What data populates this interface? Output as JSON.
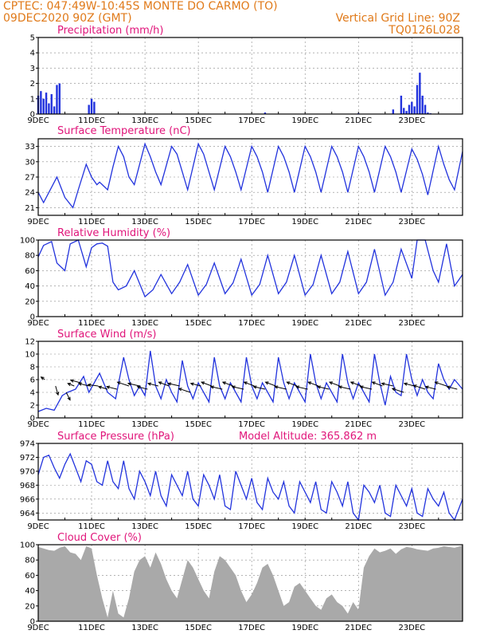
{
  "header": {
    "line1_left": "CPTEC:   047:49W-10:45S   MONTE DO CARMO (TO)",
    "line2_left": "09DEC2020 90Z (GMT)",
    "line2_right": "Vertical Grid Line: 90Z",
    "line3_right": "TQ0126L028"
  },
  "colors": {
    "header": "#e07a1a",
    "title": "#e0157a",
    "line": "#2233dd",
    "bar": "#2233dd",
    "cloud": "#a9a9a9",
    "arrow": "#000000"
  },
  "chart_data": [
    {
      "id": "precip",
      "type": "bar",
      "title": "Precipitation (mm/h)",
      "ylim": [
        0,
        5
      ],
      "yticks": [
        0,
        1,
        2,
        3,
        4,
        5
      ],
      "xticks": [
        "9DEC",
        "11DEC",
        "13DEC",
        "15DEC",
        "17DEC",
        "19DEC",
        "21DEC",
        "23DEC"
      ],
      "x": [
        0.0,
        0.1,
        0.2,
        0.3,
        0.4,
        0.5,
        0.6,
        0.7,
        0.8,
        1.9,
        2.0,
        2.1,
        8.5,
        12.0,
        13.3,
        13.6,
        13.7,
        13.8,
        13.9,
        14.0,
        14.1,
        14.2,
        14.3,
        14.4,
        14.5,
        14.6,
        14.7
      ],
      "values": [
        1.2,
        1.5,
        1.0,
        1.4,
        0.7,
        1.3,
        0.5,
        1.9,
        2.0,
        0.6,
        1.0,
        0.8,
        0.1,
        0.05,
        0.3,
        1.2,
        0.4,
        0.2,
        0.6,
        0.8,
        0.5,
        1.9,
        2.7,
        1.2,
        0.6,
        0.1,
        0.05
      ]
    },
    {
      "id": "temp",
      "type": "line",
      "title": "Surface Temperature (nC)",
      "ylim": [
        19.5,
        34.5
      ],
      "yticks": [
        21,
        24,
        27,
        30,
        33
      ],
      "xticks": [
        "9DEC",
        "11DEC",
        "13DEC",
        "15DEC",
        "17DEC",
        "19DEC",
        "21DEC",
        "23DEC"
      ],
      "x": [
        0.0,
        0.2,
        0.5,
        0.7,
        1.0,
        1.3,
        1.5,
        1.8,
        2.0,
        2.2,
        2.3,
        2.6,
        2.8,
        3.0,
        3.2,
        3.4,
        3.6,
        4.0,
        4.2,
        4.4,
        4.6,
        5.0,
        5.2,
        5.4,
        5.6,
        6.0,
        6.2,
        6.4,
        6.6,
        7.0,
        7.2,
        7.4,
        7.6,
        8.0,
        8.2,
        8.4,
        8.6,
        9.0,
        9.2,
        9.4,
        9.6,
        10.0,
        10.2,
        10.4,
        10.6,
        11.0,
        11.2,
        11.4,
        11.6,
        12.0,
        12.2,
        12.4,
        12.6,
        13.0,
        13.2,
        13.4,
        13.6,
        14.0,
        14.2,
        14.4,
        14.6,
        15.0,
        15.2,
        15.4,
        15.6,
        15.9
      ],
      "values": [
        24.0,
        22.0,
        25.0,
        27.0,
        23.0,
        21.0,
        24.5,
        29.5,
        27.0,
        25.5,
        26.0,
        24.5,
        29.0,
        33.0,
        31.0,
        27.0,
        25.5,
        33.5,
        31.0,
        28.0,
        25.5,
        33.0,
        31.5,
        28.0,
        24.5,
        33.5,
        31.5,
        28.0,
        24.5,
        33.0,
        31.0,
        28.0,
        24.5,
        33.0,
        31.0,
        28.0,
        24.0,
        33.0,
        31.0,
        28.0,
        24.0,
        33.0,
        31.0,
        28.0,
        24.0,
        33.0,
        31.0,
        28.0,
        24.0,
        33.0,
        31.0,
        28.0,
        24.0,
        33.0,
        31.0,
        28.0,
        24.0,
        32.5,
        30.5,
        27.5,
        23.5,
        33.0,
        29.5,
        26.5,
        24.5,
        32.0
      ]
    },
    {
      "id": "rh",
      "type": "line",
      "title": "Relative Humidity (%)",
      "ylim": [
        0,
        100
      ],
      "yticks": [
        0,
        20,
        40,
        60,
        80,
        100
      ],
      "xticks": [
        "9DEC",
        "11DEC",
        "13DEC",
        "15DEC",
        "17DEC",
        "19DEC",
        "21DEC",
        "23DEC"
      ],
      "x": [
        0.0,
        0.2,
        0.5,
        0.7,
        1.0,
        1.2,
        1.5,
        1.8,
        2.0,
        2.2,
        2.4,
        2.6,
        2.8,
        3.0,
        3.3,
        3.6,
        4.0,
        4.3,
        4.6,
        5.0,
        5.3,
        5.6,
        6.0,
        6.3,
        6.6,
        7.0,
        7.3,
        7.6,
        8.0,
        8.3,
        8.6,
        9.0,
        9.3,
        9.6,
        10.0,
        10.3,
        10.6,
        11.0,
        11.3,
        11.6,
        12.0,
        12.3,
        12.6,
        13.0,
        13.3,
        13.6,
        14.0,
        14.2,
        14.5,
        14.8,
        15.0,
        15.3,
        15.6,
        15.9
      ],
      "values": [
        78,
        93,
        98,
        70,
        60,
        95,
        100,
        65,
        90,
        95,
        96,
        92,
        45,
        35,
        40,
        60,
        26,
        35,
        55,
        30,
        45,
        68,
        28,
        42,
        70,
        30,
        44,
        75,
        28,
        42,
        80,
        30,
        45,
        80,
        28,
        42,
        80,
        30,
        45,
        85,
        30,
        45,
        88,
        28,
        45,
        88,
        50,
        100,
        100,
        60,
        45,
        95,
        40,
        55
      ]
    },
    {
      "id": "wind",
      "type": "line",
      "title": "Surface Wind (m/s)",
      "ylim": [
        0,
        12
      ],
      "yticks": [
        0,
        2,
        4,
        6,
        8,
        10,
        12
      ],
      "xticks": [
        "9DEC",
        "11DEC",
        "13DEC",
        "15DEC",
        "17DEC",
        "19DEC",
        "21DEC",
        "23DEC"
      ],
      "x": [
        0.0,
        0.3,
        0.6,
        0.9,
        1.1,
        1.4,
        1.7,
        1.9,
        2.1,
        2.3,
        2.6,
        2.9,
        3.2,
        3.4,
        3.6,
        3.8,
        4.0,
        4.2,
        4.4,
        4.6,
        4.8,
        5.0,
        5.2,
        5.4,
        5.6,
        5.8,
        6.0,
        6.2,
        6.4,
        6.6,
        6.8,
        7.0,
        7.2,
        7.4,
        7.6,
        7.8,
        8.0,
        8.2,
        8.4,
        8.6,
        8.8,
        9.0,
        9.2,
        9.4,
        9.6,
        9.8,
        10.0,
        10.2,
        10.4,
        10.6,
        10.8,
        11.0,
        11.2,
        11.4,
        11.6,
        11.8,
        12.0,
        12.2,
        12.4,
        12.6,
        12.8,
        13.0,
        13.2,
        13.4,
        13.6,
        13.8,
        14.0,
        14.2,
        14.4,
        14.6,
        14.8,
        15.0,
        15.2,
        15.4,
        15.6,
        15.9
      ],
      "values": [
        1.0,
        1.5,
        1.2,
        3.5,
        4.0,
        4.5,
        6.5,
        4.0,
        5.5,
        7.0,
        4.0,
        3.0,
        9.5,
        6.0,
        3.5,
        5.0,
        3.5,
        10.5,
        5.0,
        3.0,
        6.0,
        4.0,
        2.5,
        9.0,
        5.0,
        3.0,
        5.5,
        4.0,
        2.5,
        9.5,
        5.0,
        3.0,
        5.5,
        4.0,
        2.5,
        9.5,
        5.0,
        3.0,
        5.5,
        4.0,
        2.5,
        9.5,
        5.5,
        3.0,
        5.5,
        4.0,
        2.5,
        10.0,
        5.5,
        3.0,
        5.5,
        4.0,
        2.5,
        10.0,
        5.5,
        3.0,
        5.5,
        4.0,
        2.5,
        10.0,
        5.5,
        2.0,
        6.5,
        4.0,
        3.5,
        10.0,
        6.0,
        3.5,
        6.0,
        4.0,
        3.0,
        8.5,
        6.0,
        4.5,
        6.0,
        4.5
      ],
      "barbs_x": [
        0.25,
        0.65,
        1.05,
        1.35,
        1.6,
        1.9,
        2.25,
        2.6,
        2.95,
        3.4,
        3.8,
        4.1,
        4.5,
        4.9,
        5.3,
        5.7,
        6.1,
        6.5,
        6.9,
        7.3,
        7.7,
        8.1,
        8.5,
        8.9,
        9.3,
        9.7,
        10.1,
        10.5,
        10.9,
        11.3,
        11.7,
        12.1,
        12.5,
        12.9,
        13.3,
        13.7,
        14.1,
        14.5,
        14.9,
        15.3,
        15.7
      ],
      "barbs_y": [
        6,
        5,
        4,
        5,
        5.5,
        5,
        5,
        4.5,
        4.5,
        5,
        5,
        4.5,
        5,
        5,
        5,
        4,
        5,
        5,
        4.5,
        5,
        4.5,
        5,
        4.5,
        5,
        4.5,
        5,
        4.5,
        5,
        4.5,
        5,
        4.5,
        5,
        4.5,
        5,
        5,
        4,
        5,
        4.5,
        4.5,
        5,
        4.5
      ],
      "barbs_u": [
        -3,
        2,
        3,
        -5,
        -8,
        -8,
        -8,
        -7,
        -8,
        -9,
        -9,
        -8,
        -8,
        -8,
        -9,
        -9,
        -8,
        -8,
        -9,
        -8,
        -9,
        -8,
        -9,
        -8,
        -9,
        -8,
        -9,
        -8,
        -9,
        -8,
        -9,
        -8,
        -9,
        -8,
        -9,
        -9,
        -8,
        -9,
        -8,
        -9,
        -8
      ],
      "barbs_v": [
        2,
        -7,
        -6,
        2,
        2,
        2,
        1,
        2,
        2,
        3,
        2,
        2,
        2,
        3,
        2,
        3,
        2,
        3,
        2,
        3,
        2,
        3,
        2,
        3,
        2,
        3,
        2,
        3,
        2,
        3,
        2,
        3,
        2,
        3,
        2,
        3,
        2,
        3,
        2,
        3,
        2
      ]
    },
    {
      "id": "press",
      "type": "line",
      "title": "Surface Pressure (hPa)",
      "annotation": "Model Altitude: 365.862 m",
      "ylim": [
        963,
        974
      ],
      "yticks": [
        964,
        966,
        968,
        970,
        972,
        974
      ],
      "xticks": [
        "9DEC",
        "11DEC",
        "13DEC",
        "15DEC",
        "17DEC",
        "19DEC",
        "21DEC",
        "23DEC"
      ],
      "x": [
        0.0,
        0.2,
        0.4,
        0.6,
        0.8,
        1.0,
        1.2,
        1.4,
        1.6,
        1.8,
        2.0,
        2.2,
        2.4,
        2.6,
        2.8,
        3.0,
        3.2,
        3.4,
        3.6,
        3.8,
        4.0,
        4.2,
        4.4,
        4.6,
        4.8,
        5.0,
        5.2,
        5.4,
        5.6,
        5.8,
        6.0,
        6.2,
        6.4,
        6.6,
        6.8,
        7.0,
        7.2,
        7.4,
        7.6,
        7.8,
        8.0,
        8.2,
        8.4,
        8.6,
        8.8,
        9.0,
        9.2,
        9.4,
        9.6,
        9.8,
        10.0,
        10.2,
        10.4,
        10.6,
        10.8,
        11.0,
        11.2,
        11.4,
        11.6,
        11.8,
        12.0,
        12.2,
        12.4,
        12.6,
        12.8,
        13.0,
        13.2,
        13.4,
        13.6,
        13.8,
        14.0,
        14.2,
        14.4,
        14.6,
        14.8,
        15.0,
        15.2,
        15.4,
        15.6,
        15.9
      ],
      "values": [
        969.5,
        972.0,
        972.3,
        970.5,
        969.0,
        971.0,
        972.5,
        970.5,
        968.5,
        971.5,
        971.0,
        968.5,
        968.0,
        971.5,
        968.5,
        967.5,
        971.5,
        967.5,
        966.0,
        970.0,
        968.5,
        966.5,
        970.0,
        966.5,
        965.0,
        969.5,
        968.0,
        966.5,
        970.0,
        966.0,
        965.0,
        969.5,
        968.0,
        966.0,
        969.5,
        965.0,
        964.5,
        970.0,
        968.0,
        966.0,
        969.0,
        965.5,
        964.5,
        969.0,
        967.0,
        966.0,
        968.5,
        965.0,
        964.0,
        968.5,
        967.0,
        965.5,
        968.5,
        964.5,
        964.0,
        968.5,
        967.0,
        965.0,
        968.5,
        964.0,
        963.0,
        968.0,
        967.0,
        965.5,
        968.0,
        964.0,
        963.5,
        968.0,
        966.5,
        965.0,
        967.5,
        964.0,
        963.5,
        967.5,
        966.0,
        965.0,
        967.0,
        964.0,
        963.0,
        966.0
      ]
    },
    {
      "id": "cloud",
      "type": "area",
      "title": "Cloud Cover (%)",
      "ylim": [
        0,
        100
      ],
      "yticks": [
        0,
        20,
        40,
        60,
        80,
        100
      ],
      "xticks": [
        "9DEC",
        "11DEC",
        "13DEC",
        "15DEC",
        "17DEC",
        "19DEC",
        "21DEC",
        "23DEC"
      ],
      "x": [
        0.0,
        0.2,
        0.4,
        0.6,
        0.8,
        1.0,
        1.2,
        1.4,
        1.6,
        1.8,
        2.0,
        2.2,
        2.4,
        2.6,
        2.8,
        3.0,
        3.2,
        3.4,
        3.6,
        3.8,
        4.0,
        4.2,
        4.4,
        4.6,
        4.8,
        5.0,
        5.2,
        5.4,
        5.6,
        5.8,
        6.0,
        6.2,
        6.4,
        6.6,
        6.8,
        7.0,
        7.2,
        7.4,
        7.6,
        7.8,
        8.0,
        8.2,
        8.4,
        8.6,
        8.8,
        9.0,
        9.2,
        9.4,
        9.6,
        9.8,
        10.0,
        10.2,
        10.4,
        10.6,
        10.8,
        11.0,
        11.2,
        11.4,
        11.6,
        11.8,
        12.0,
        12.2,
        12.4,
        12.6,
        12.8,
        13.0,
        13.2,
        13.4,
        13.6,
        13.8,
        14.0,
        14.2,
        14.4,
        14.6,
        14.8,
        15.0,
        15.2,
        15.4,
        15.6,
        15.9
      ],
      "values": [
        97,
        95,
        93,
        92,
        96,
        98,
        90,
        88,
        80,
        98,
        95,
        60,
        30,
        5,
        40,
        10,
        5,
        30,
        65,
        80,
        85,
        70,
        90,
        75,
        55,
        40,
        30,
        55,
        80,
        70,
        55,
        40,
        30,
        65,
        85,
        80,
        70,
        60,
        40,
        25,
        35,
        50,
        70,
        75,
        60,
        40,
        20,
        25,
        45,
        50,
        40,
        30,
        20,
        15,
        30,
        35,
        25,
        20,
        10,
        25,
        15,
        70,
        85,
        95,
        90,
        92,
        95,
        88,
        94,
        97,
        96,
        94,
        93,
        92,
        95,
        96,
        98,
        97,
        96,
        99
      ]
    }
  ]
}
